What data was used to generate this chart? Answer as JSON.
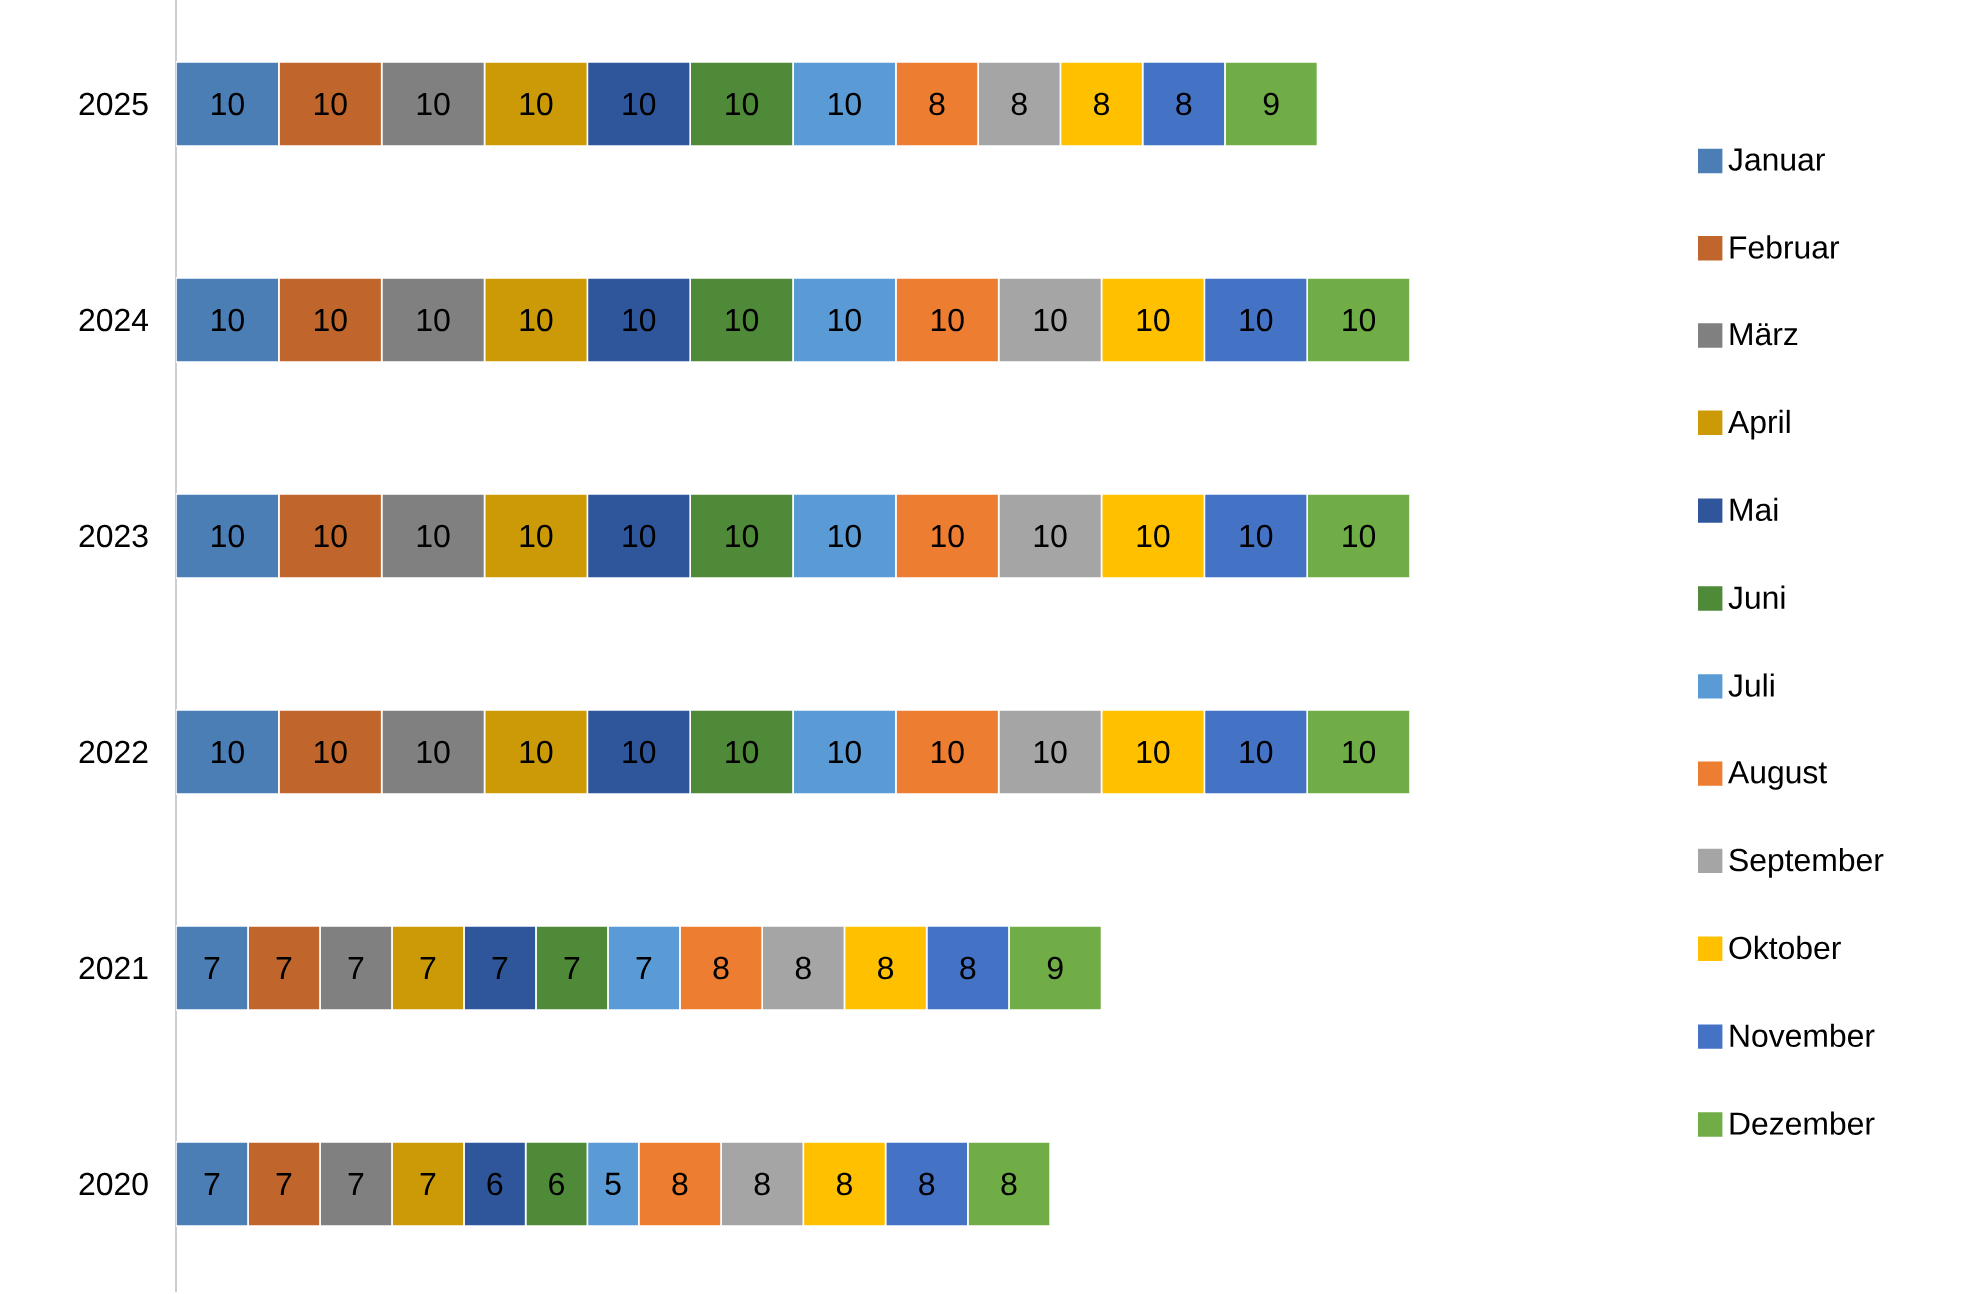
{
  "chart_data": {
    "type": "bar",
    "orientation": "horizontal",
    "stacked": true,
    "data_labels": true,
    "legend": "right",
    "categories": [
      "2025",
      "2024",
      "2023",
      "2022",
      "2021",
      "2020"
    ],
    "series": [
      {
        "name": "Januar",
        "color": "#4a7eb5",
        "values": [
          10,
          10,
          10,
          10,
          7,
          7
        ]
      },
      {
        "name": "Februar",
        "color": "#c0652b",
        "values": [
          10,
          10,
          10,
          10,
          7,
          7
        ]
      },
      {
        "name": "März",
        "color": "#808080",
        "values": [
          10,
          10,
          10,
          10,
          7,
          7
        ]
      },
      {
        "name": "April",
        "color": "#cc9a06",
        "values": [
          10,
          10,
          10,
          10,
          7,
          7
        ]
      },
      {
        "name": "Mai",
        "color": "#2f569a",
        "values": [
          10,
          10,
          10,
          10,
          7,
          6
        ]
      },
      {
        "name": "Juni",
        "color": "#4e8a38",
        "values": [
          10,
          10,
          10,
          10,
          7,
          6
        ]
      },
      {
        "name": "Juli",
        "color": "#5b9bd5",
        "values": [
          10,
          10,
          10,
          10,
          7,
          5
        ]
      },
      {
        "name": "August",
        "color": "#ed7d31",
        "values": [
          8,
          10,
          10,
          10,
          8,
          8
        ]
      },
      {
        "name": "September",
        "color": "#a5a5a5",
        "values": [
          8,
          10,
          10,
          10,
          8,
          8
        ]
      },
      {
        "name": "Oktober",
        "color": "#ffc000",
        "values": [
          8,
          10,
          10,
          10,
          8,
          8
        ]
      },
      {
        "name": "November",
        "color": "#4472c4",
        "values": [
          8,
          10,
          10,
          10,
          8,
          8
        ]
      },
      {
        "name": "Dezember",
        "color": "#70ad47",
        "values": [
          9,
          10,
          10,
          10,
          9,
          8
        ]
      }
    ]
  }
}
